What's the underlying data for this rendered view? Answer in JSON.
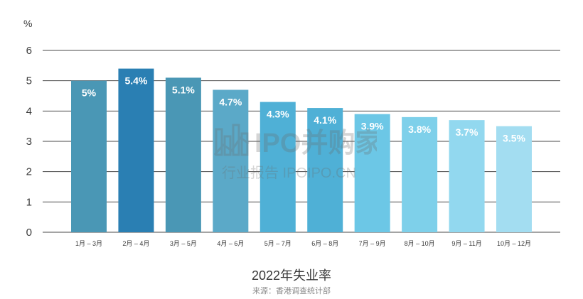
{
  "chart_data": {
    "type": "bar",
    "title": "2022年失业率",
    "source": "来源：香港调查统计部",
    "y_unit": "%",
    "ylim": [
      0,
      6
    ],
    "yticks": [
      0,
      1,
      2,
      3,
      4,
      5,
      6
    ],
    "grid": true,
    "categories": [
      "1月 – 3月",
      "2月 – 4月",
      "3月 – 5月",
      "4月 – 6月",
      "5月 – 7月",
      "6月 – 8月",
      "7月 – 9月",
      "8月 – 10月",
      "9月 – 11月",
      "10月 – 12月"
    ],
    "values": [
      5,
      5.4,
      5.1,
      4.7,
      4.3,
      4.1,
      3.9,
      3.8,
      3.7,
      3.5
    ],
    "data_labels": [
      "5%",
      "5.4%",
      "5.1%",
      "4.7%",
      "4.3%",
      "4.1%",
      "3.9%",
      "3.8%",
      "3.7%",
      "3.5%"
    ],
    "colors": [
      "#4a97b5",
      "#2a7fb3",
      "#4a97b5",
      "#5ba9c8",
      "#4fb0d6",
      "#4fb0d6",
      "#6cc7e6",
      "#7ed0ea",
      "#92d8ef",
      "#a3ddf1"
    ]
  },
  "watermark": {
    "text_main": "IPO并购家",
    "text_sub": "行业报告 IPOIPO.CN"
  }
}
